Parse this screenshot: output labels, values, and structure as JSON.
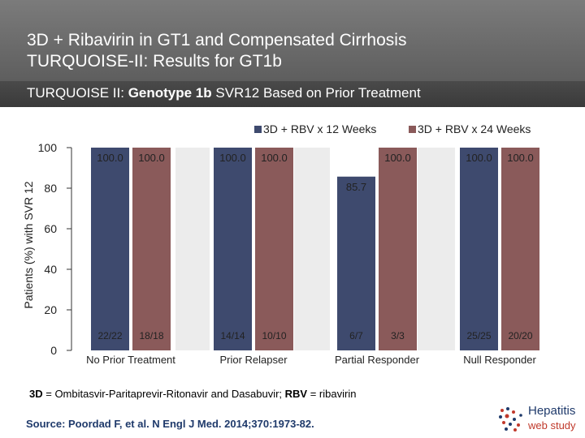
{
  "header": {
    "title_line1": "3D + Ribavirin in GT1 and Compensated Cirrhosis",
    "title_line2": "TURQUOISE-II: Results for GT1b"
  },
  "subtitle": {
    "prefix": "TURQUOISE II: ",
    "bold": "Genotype 1b",
    "suffix": " SVR12 Based on Prior Treatment"
  },
  "colors": {
    "series1": "#3e4a6e",
    "series2": "#8a5a5a",
    "group_bg": "#ececec",
    "subbar": "#3f3f3f"
  },
  "chart_data": {
    "type": "bar",
    "categories": [
      "No Prior Treatment",
      "Prior Relapser",
      "Partial Responder",
      "Null Responder"
    ],
    "series": [
      {
        "name": "3D + RBV x 12 Weeks",
        "values": [
          100.0,
          100.0,
          85.7,
          100.0
        ],
        "labels": [
          "100.0",
          "100.0",
          "85.7",
          "100.0"
        ],
        "counts": [
          "22/22",
          "14/14",
          "6/7",
          "25/25"
        ]
      },
      {
        "name": "3D + RBV x 24 Weeks",
        "values": [
          100.0,
          100.0,
          100.0,
          100.0
        ],
        "labels": [
          "100.0",
          "100.0",
          "100.0",
          "100.0"
        ],
        "counts": [
          "18/18",
          "10/10",
          "3/3",
          "20/20"
        ]
      }
    ],
    "ylabel": "Patients (%) with SVR 12",
    "ylim": [
      0,
      100
    ],
    "yticks": [
      "0",
      "20",
      "40",
      "60",
      "80",
      "100"
    ],
    "legend_position": "top-right"
  },
  "footnote": {
    "t1": "3D",
    "t2": " = Ombitasvir-Paritaprevir-Ritonavir and Dasabuvir; ",
    "t3": "RBV",
    "t4": " = ribavirin"
  },
  "source": "Source: Poordad F, et al. N Engl J Med. 2014;370:1973-82.",
  "logo": {
    "line1": "Hepatitis",
    "line2": "web study"
  }
}
